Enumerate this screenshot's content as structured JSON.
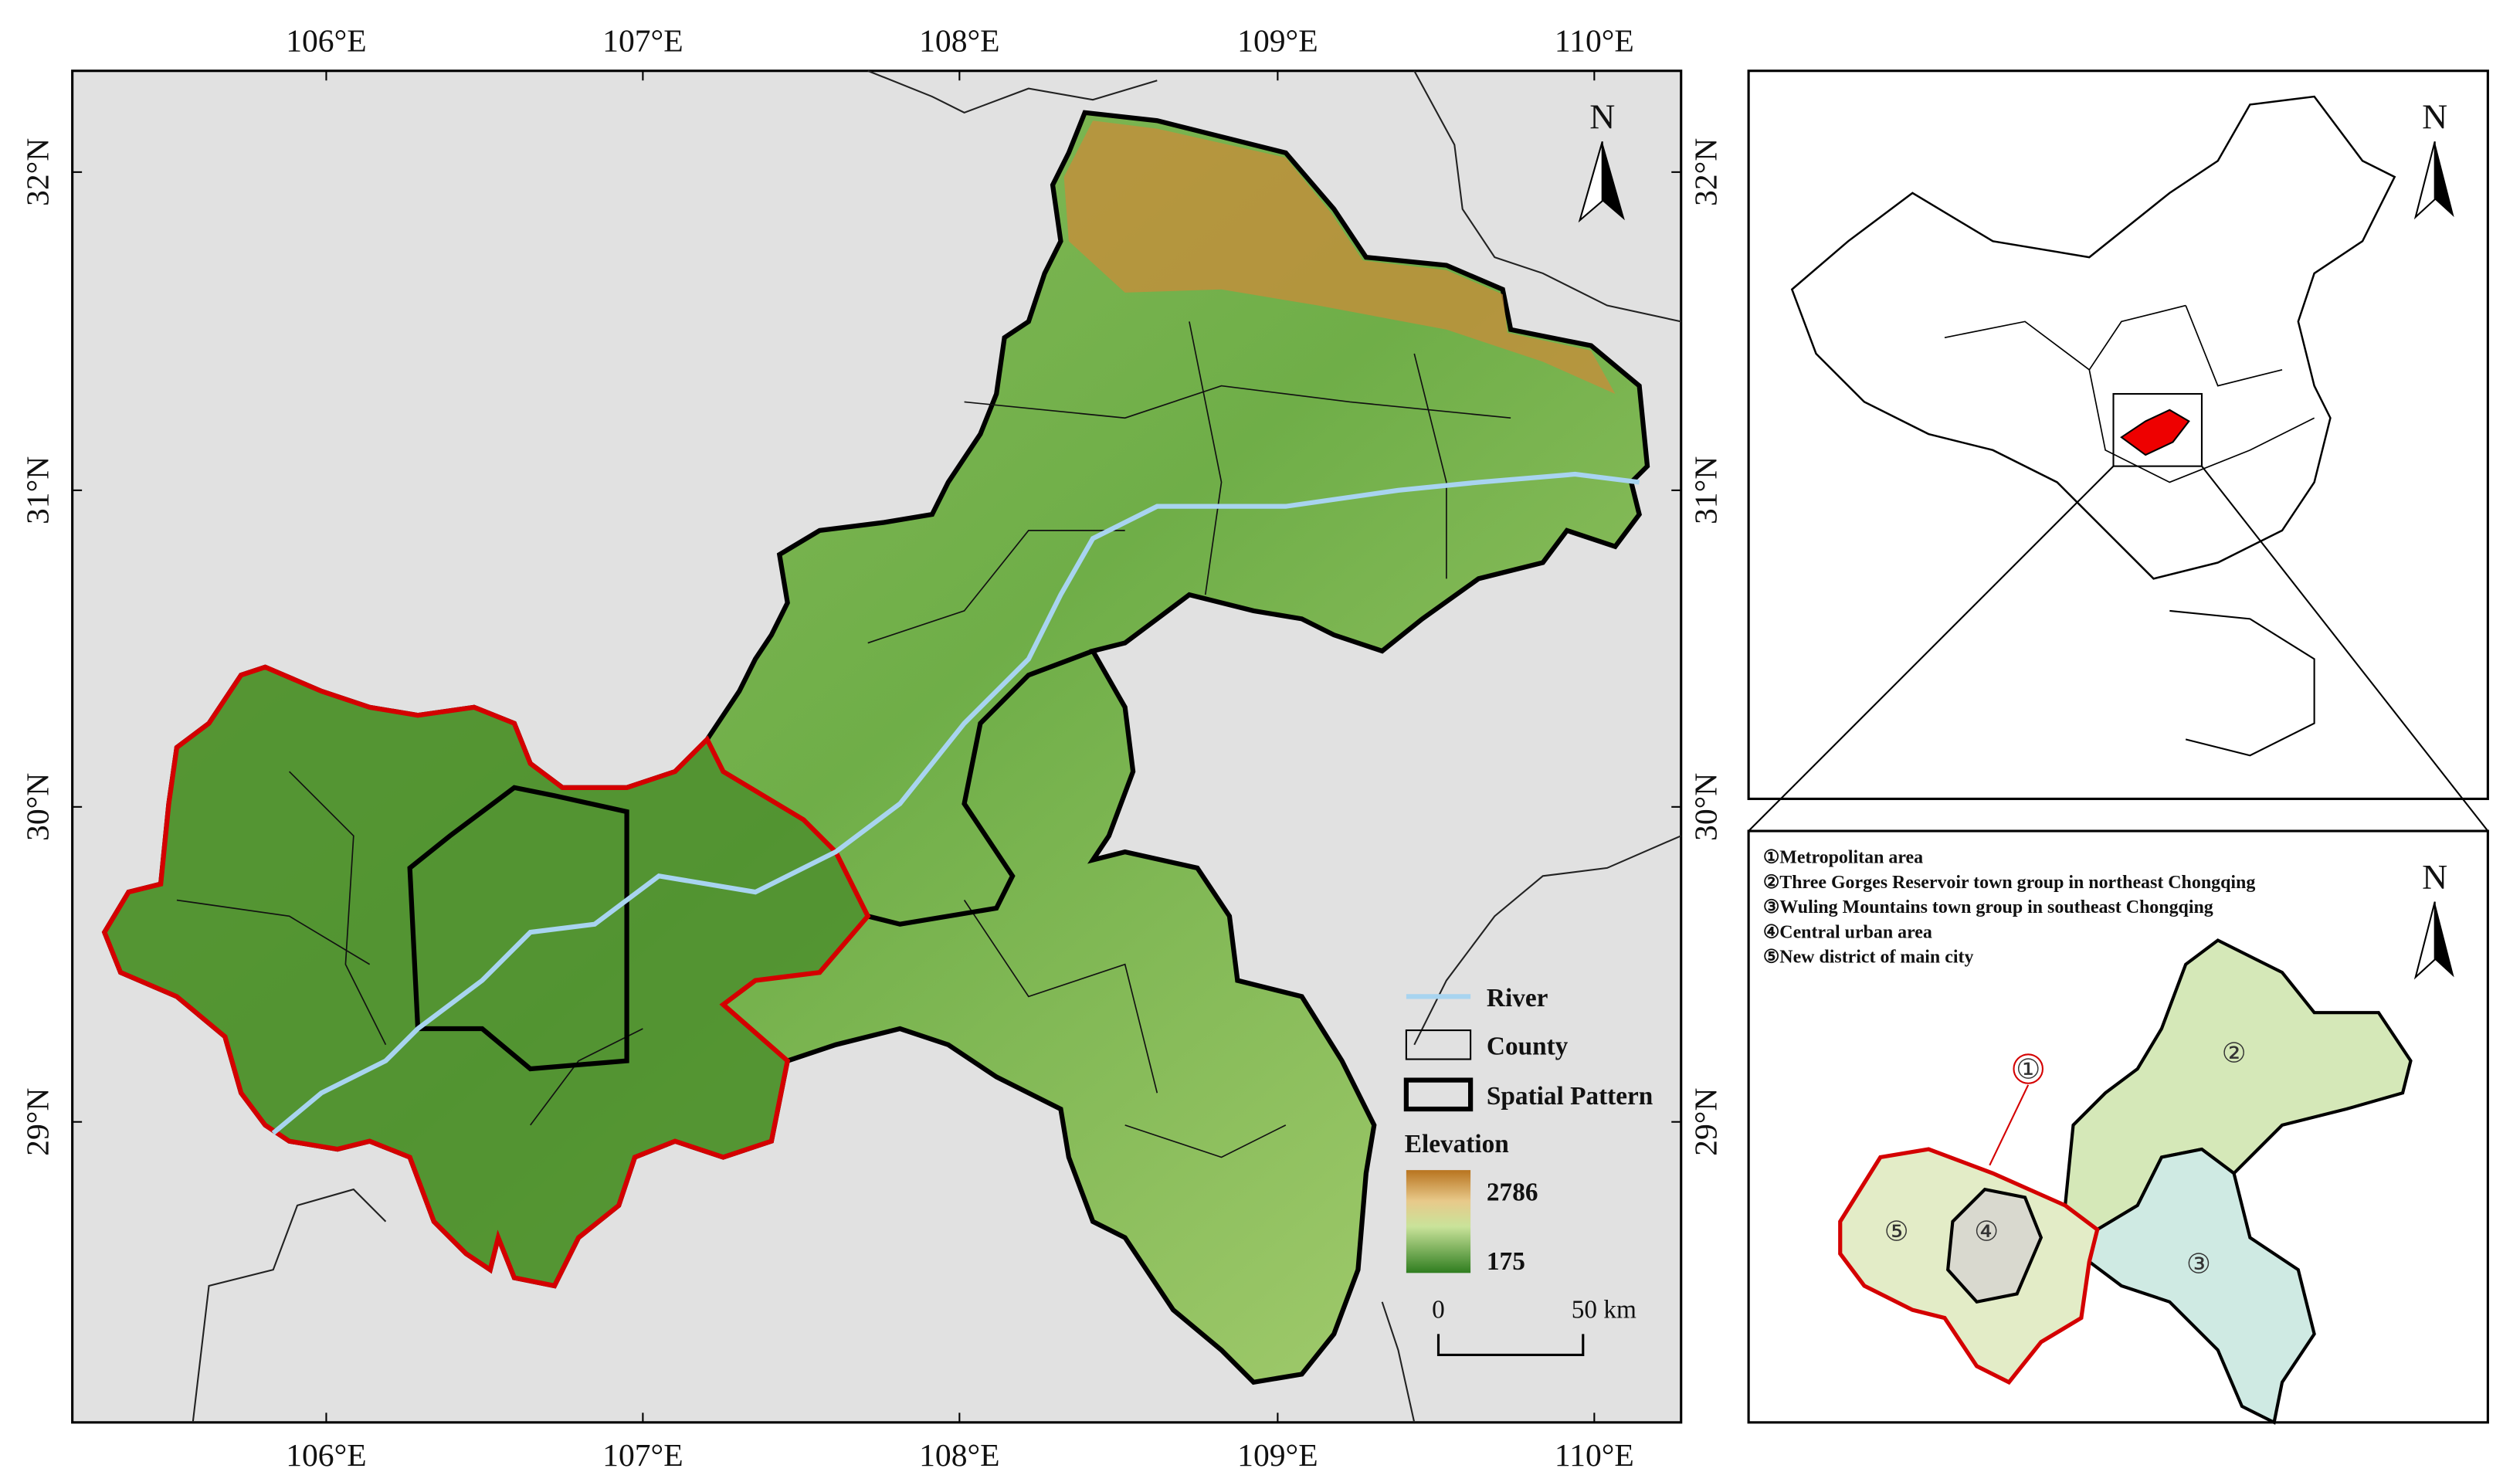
{
  "map": {
    "longitude_labels": [
      "106°E",
      "107°E",
      "108°E",
      "109°E",
      "110°E"
    ],
    "latitude_labels": [
      "32°N",
      "31°N",
      "30°N",
      "29°N"
    ],
    "north": "N"
  },
  "legend": {
    "river": "River",
    "county": "County",
    "spatial_pattern": "Spatial Pattern",
    "elevation": "Elevation",
    "elevation_max": "2786",
    "elevation_min": "175",
    "scale_start": "0",
    "scale_end": "50 km"
  },
  "china_inset": {
    "north": "N"
  },
  "pattern_inset": {
    "north": "N",
    "items": [
      "①Metropolitan area",
      "②Three Gorges Reservoir town group in northeast Chongqing",
      "③Wuling Mountains town group in southeast Chongqing",
      "④Central urban area",
      "⑤New district of main city"
    ],
    "region_labels": [
      "①",
      "②",
      "③",
      "④",
      "⑤"
    ]
  }
}
